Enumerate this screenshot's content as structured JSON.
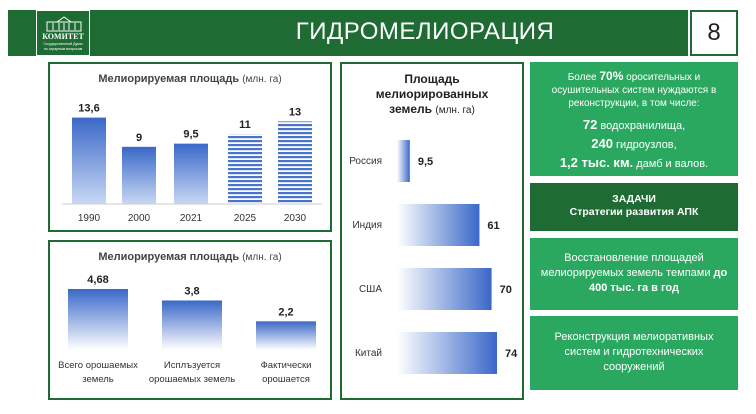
{
  "header": {
    "title": "ГИДРОМЕЛИОРАЦИЯ",
    "page_number": "8",
    "logo_title": "КОМИТЕТ",
    "logo_subtitle_1": "Государственной Думы",
    "logo_subtitle_2": "по аграрным вопросам"
  },
  "colors": {
    "dark_green": "#1e6b34",
    "light_green": "#2aa860",
    "bar_blue": "#3a68c8"
  },
  "chart_data": [
    {
      "type": "bar",
      "title": "Мелиорируемая площадь",
      "title_unit": "(млн. га)",
      "categories": [
        "1990",
        "2000",
        "2021",
        "2025",
        "2030"
      ],
      "values": [
        13.6,
        9,
        9.5,
        11,
        13
      ],
      "value_labels": [
        "13,6",
        "9",
        "9,5",
        "11",
        "13"
      ],
      "forecast_categories": [
        "2025",
        "2030"
      ],
      "ylim": [
        0,
        16
      ]
    },
    {
      "type": "bar",
      "title": "Мелиорируемая площадь",
      "title_unit": "(млн. га)",
      "categories": [
        "Всего орошаемых земель",
        "Исплъзуется орошаемых земель",
        "Фактически орошается"
      ],
      "category_lines": [
        [
          "Всего орошаемых",
          "земель"
        ],
        [
          "Исплъзуется",
          "орошаемых земель"
        ],
        [
          "Фактически",
          "орошается"
        ]
      ],
      "values": [
        4.68,
        3.8,
        2.2
      ],
      "value_labels": [
        "4,68",
        "3,8",
        "2,2"
      ],
      "ylim": [
        0,
        5
      ]
    },
    {
      "type": "bar",
      "orientation": "horizontal",
      "title_lines": [
        "Площадь",
        "мелиорированных"
      ],
      "title_last": "земель",
      "title_unit": "(млн. га)",
      "categories": [
        "Россия",
        "Индия",
        "США",
        "Китай"
      ],
      "values": [
        9.5,
        61,
        70,
        74
      ],
      "value_labels": [
        "9,5",
        "61",
        "70",
        "74"
      ],
      "xlim": [
        0,
        80
      ]
    }
  ],
  "right": {
    "box1": {
      "intro_pre": "Более ",
      "intro_pct": "70%",
      "intro_post": " оросительных и осушительных систем нуждаются в реконструкции, в том числе:",
      "line1_num": "72",
      "line1_txt": " водохранилища,",
      "line2_num": "240",
      "line2_txt": " гидроузлов,",
      "line3_num": "1,2 тыс. км.",
      "line3_txt": " дамб и валов."
    },
    "box2": {
      "title": "ЗАДАЧИ",
      "subtitle": "Стратегии развития АПК"
    },
    "box3": {
      "text": "Восстановление площадей мелиорируемых земель темпами ",
      "bold": "до 400 тыс. га в год"
    },
    "box4": {
      "text": "Реконструкция мелиоративных систем и гидротехнических сооружений"
    }
  }
}
